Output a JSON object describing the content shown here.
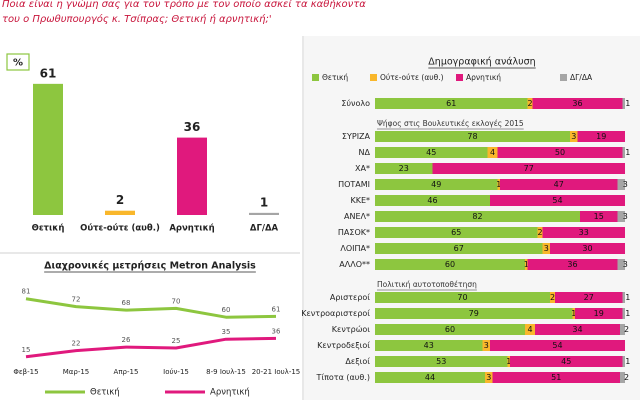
{
  "header": {
    "question": [
      "Ποια είναι η γνώμη σας για τον τρόπο με τον οποίο ασκεί τα καθήκοντα",
      "του ο Πρωθυπουργός κ. Τσίπρας; Θετική ή αρνητική;'"
    ]
  },
  "chart_data": [
    {
      "type": "bar",
      "unit": "%",
      "categories": [
        "Θετική",
        "Ούτε-ούτε (αυθ.)",
        "Αρνητική",
        "ΔΓ/ΔΑ"
      ],
      "values": [
        61,
        2,
        36,
        1
      ],
      "colors": [
        "#8dc63f",
        "#f9b72b",
        "#e0197d",
        "#a5a5a5"
      ]
    },
    {
      "type": "line",
      "title": "Διαχρονικές μετρήσεις Metron Analysis",
      "categories": [
        "Φεβ-15",
        "Μαρ-15",
        "Απρ-15",
        "Ιούν-15",
        "8-9 Ιουλ-15",
        "20-21 Ιουλ-15"
      ],
      "series": [
        {
          "name": "Θετική",
          "color": "#8dc63f",
          "values": [
            81,
            72,
            68,
            70,
            60,
            61
          ]
        },
        {
          "name": "Αρνητική",
          "color": "#e0197d",
          "values": [
            15,
            22,
            26,
            25,
            35,
            36
          ]
        }
      ]
    },
    {
      "type": "stacked_barh",
      "title": "Δημογραφική ανάλυση",
      "series": [
        {
          "name": "Θετική",
          "color": "#8dc63f"
        },
        {
          "name": "Ούτε-ούτε (αυθ.)",
          "color": "#f9b72b"
        },
        {
          "name": "Αρνητική",
          "color": "#e0197d"
        },
        {
          "name": "ΔΓ/ΔΑ",
          "color": "#a5a5a5"
        }
      ],
      "groups": [
        {
          "categories": [
            "Σύνολο"
          ],
          "values": [
            [
              61,
              2,
              36,
              1
            ]
          ]
        },
        {
          "title": "Ψήφος στις Βουλευτικές εκλογές 2015",
          "categories": [
            "ΣΥΡΙΖΑ",
            "ΝΔ",
            "ΧΑ*",
            "ΠΟΤΑΜΙ",
            "ΚΚΕ*",
            "ΑΝΕΛ*",
            "ΠΑΣΟΚ*",
            "ΛΟΙΠΑ*",
            "ΑΛΛΟ**"
          ],
          "values": [
            [
              78,
              3,
              19,
              null
            ],
            [
              45,
              4,
              50,
              1
            ],
            [
              23,
              null,
              77,
              null
            ],
            [
              49,
              1,
              47,
              3
            ],
            [
              46,
              null,
              54,
              null
            ],
            [
              82,
              null,
              15,
              3
            ],
            [
              65,
              2,
              33,
              null
            ],
            [
              67,
              3,
              30,
              null
            ],
            [
              60,
              1,
              36,
              3
            ]
          ]
        },
        {
          "title": "Πολιτική αυτοτοποθέτηση",
          "categories": [
            "Αριστεροί",
            "Κεντροαριστεροί",
            "Κεντρώοι",
            "Κεντροδεξιοί",
            "Δεξιοί",
            "Τίποτα (αυθ.)"
          ],
          "values": [
            [
              70,
              2,
              27,
              1
            ],
            [
              79,
              1,
              19,
              1
            ],
            [
              60,
              4,
              34,
              2
            ],
            [
              43,
              3,
              54,
              null
            ],
            [
              53,
              1,
              45,
              1
            ],
            [
              44,
              3,
              51,
              2
            ]
          ]
        }
      ]
    }
  ]
}
